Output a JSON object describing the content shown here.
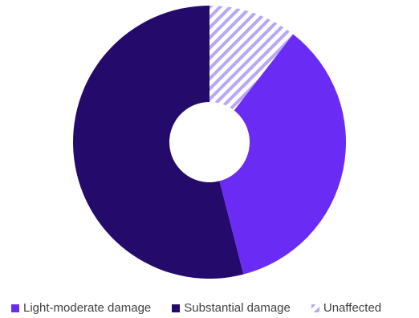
{
  "chart_data": {
    "type": "pie",
    "donut": true,
    "title": "",
    "slices": [
      {
        "label": "Unaffected",
        "value": 10.5,
        "color": "#b7a8f5",
        "pattern": "hatched"
      },
      {
        "label": "Light-moderate damage",
        "value": 35.5,
        "color": "#6a2cf5",
        "pattern": "solid"
      },
      {
        "label": "Substantial damage",
        "value": 54.0,
        "color": "#240a6b",
        "pattern": "solid"
      }
    ],
    "legend": {
      "position": "bottom",
      "entries": [
        "Light-moderate damage",
        "Substantial damage",
        "Unaffected"
      ]
    },
    "data_labels": false
  }
}
